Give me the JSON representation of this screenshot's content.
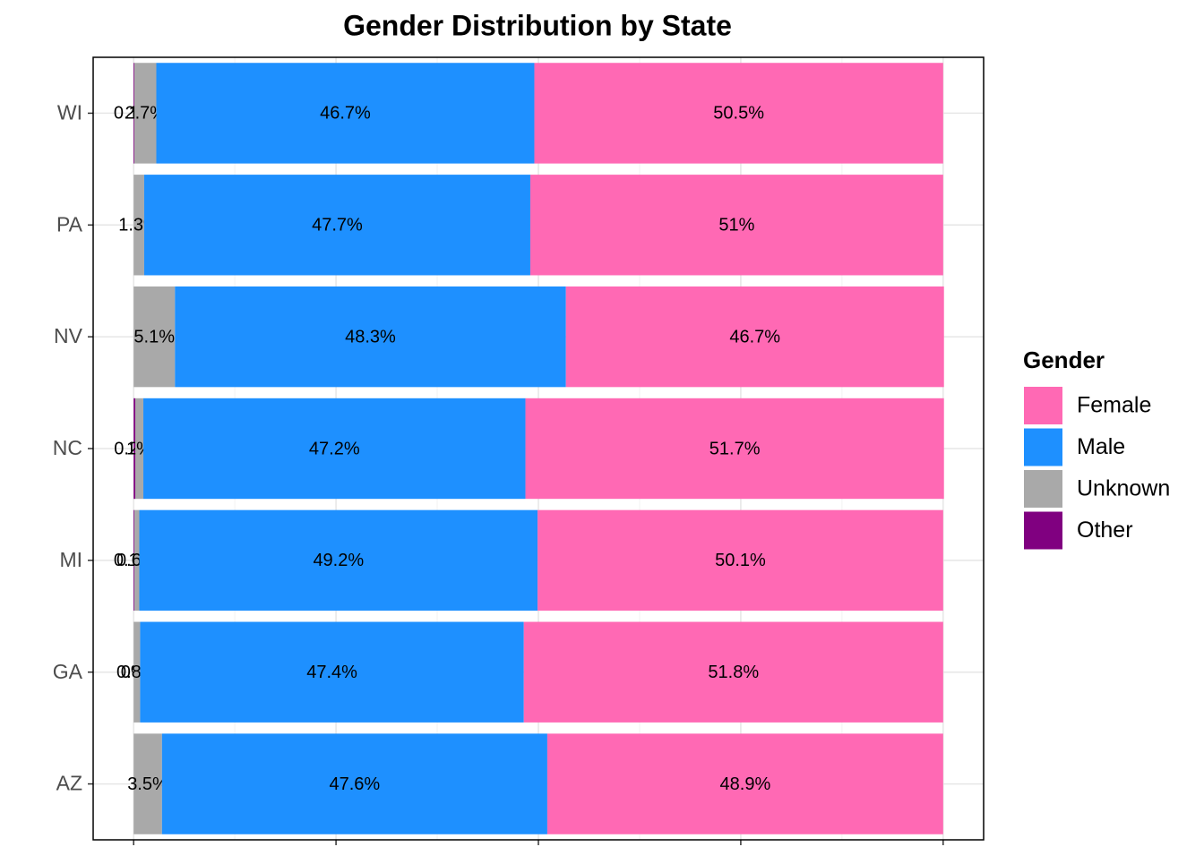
{
  "chart_data": {
    "type": "stacked-barh",
    "title": "Gender Distribution by State",
    "legend_title": "Gender",
    "categories": [
      "AZ",
      "GA",
      "MI",
      "NC",
      "NV",
      "PA",
      "WI"
    ],
    "series": [
      {
        "name": "Female",
        "color": "#ff69b4",
        "values": [
          0.489,
          0.518,
          0.501,
          0.517,
          0.467,
          0.51,
          0.505
        ],
        "value_labels": [
          "48.9%",
          "51.8%",
          "50.1%",
          "51.7%",
          "46.7%",
          "51%",
          "50.5%"
        ]
      },
      {
        "name": "Male",
        "color": "#1e90ff",
        "values": [
          0.476,
          0.474,
          0.492,
          0.472,
          0.483,
          0.477,
          0.467
        ],
        "value_labels": [
          "47.6%",
          "47.4%",
          "49.2%",
          "47.2%",
          "48.3%",
          "47.7%",
          "46.7%"
        ]
      },
      {
        "name": "Unknown",
        "color": "#a9a9a9",
        "values": [
          0.035,
          0.008,
          0.006,
          0.01,
          0.051,
          0.013,
          0.027
        ],
        "value_labels": [
          "3.5%",
          "0.8%",
          "0.6%",
          "1%",
          "5.1%",
          "1.3%",
          "2.7%"
        ]
      },
      {
        "name": "Other",
        "color": "#800080",
        "values": [
          null,
          0,
          0.001,
          0.002,
          null,
          null,
          0.001
        ],
        "value_labels": [
          null,
          "0%",
          "0.1%",
          "0.2%",
          null,
          null,
          "0.1%"
        ]
      }
    ],
    "xlim": [
      -0.05,
      1.05
    ],
    "xticks": [
      0,
      0.25,
      0.5,
      0.75,
      1
    ],
    "grid": true
  }
}
